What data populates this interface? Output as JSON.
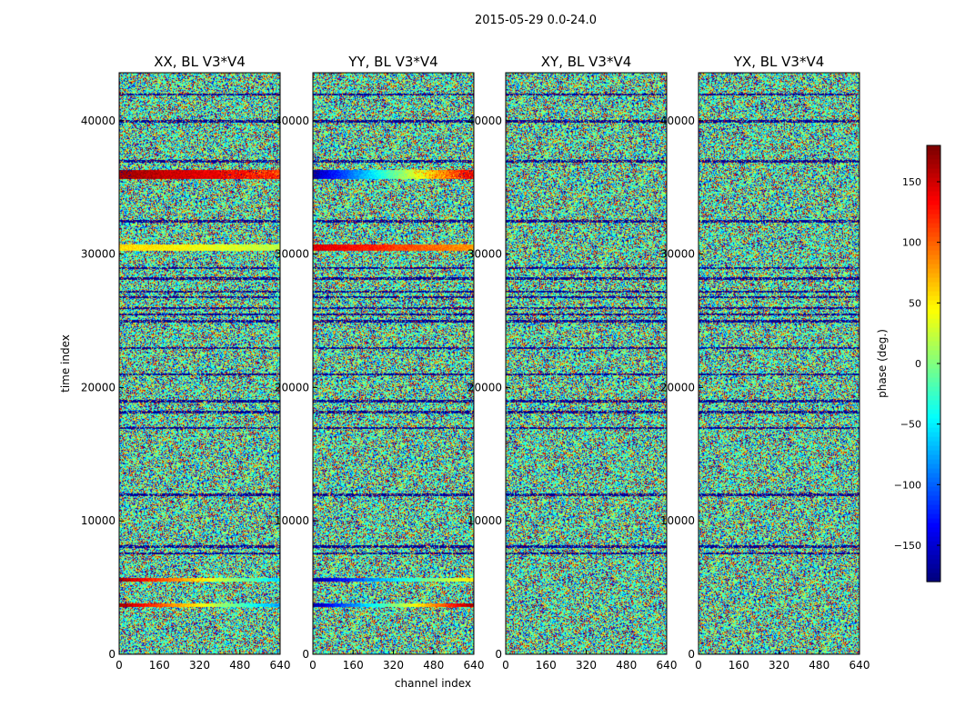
{
  "figure": {
    "suptitle": "2015-05-29 0.0-24.0"
  },
  "chart_data": {
    "type": "heatmap",
    "panels": [
      {
        "title": "XX, BL V3*V4"
      },
      {
        "title": "YY, BL V3*V4"
      },
      {
        "title": "XY, BL V3*V4"
      },
      {
        "title": "YX, BL V3*V4"
      }
    ],
    "xlabel": "channel index",
    "ylabel": "time index",
    "xlim": [
      0,
      640
    ],
    "ylim": [
      0,
      43600
    ],
    "xticks": [
      0,
      160,
      320,
      480,
      640
    ],
    "yticks": [
      0,
      10000,
      20000,
      30000,
      40000
    ],
    "colorbar": {
      "label": "phase (deg.)",
      "range": [
        -180,
        180
      ],
      "ticks": [
        -150,
        -100,
        -50,
        0,
        50,
        100,
        150
      ],
      "colormap": "jet"
    },
    "features": {
      "noise": "random phase noise across all panels",
      "dark_rows_time_index": [
        7600,
        8100,
        25000,
        25500,
        26000,
        26800,
        28200,
        29000,
        12000,
        17000,
        18200,
        19000,
        21000,
        23000,
        27200,
        32500,
        37000,
        40000,
        42000
      ],
      "coherent_bands": [
        {
          "panel": 0,
          "t": 36000,
          "span": 700,
          "phase_start": 170,
          "phase_end": 120,
          "split_channel": 400
        },
        {
          "panel": 0,
          "t": 30500,
          "span": 500,
          "phase_start": 60,
          "phase_end": 20
        },
        {
          "panel": 0,
          "t": 5600,
          "span": 300,
          "phase_start": 170,
          "phase_end": -60
        },
        {
          "panel": 0,
          "t": 3700,
          "span": 300,
          "phase_start": 170,
          "phase_end": -80
        },
        {
          "panel": 1,
          "t": 36000,
          "span": 700,
          "phase_start": -170,
          "phase_end": 150,
          "split_channel": 400
        },
        {
          "panel": 1,
          "t": 30500,
          "span": 500,
          "phase_start": 150,
          "phase_end": 80
        },
        {
          "panel": 1,
          "t": 5600,
          "span": 300,
          "phase_start": -170,
          "phase_end": 60
        },
        {
          "panel": 1,
          "t": 3700,
          "span": 300,
          "phase_start": -170,
          "phase_end": 170
        }
      ]
    }
  }
}
